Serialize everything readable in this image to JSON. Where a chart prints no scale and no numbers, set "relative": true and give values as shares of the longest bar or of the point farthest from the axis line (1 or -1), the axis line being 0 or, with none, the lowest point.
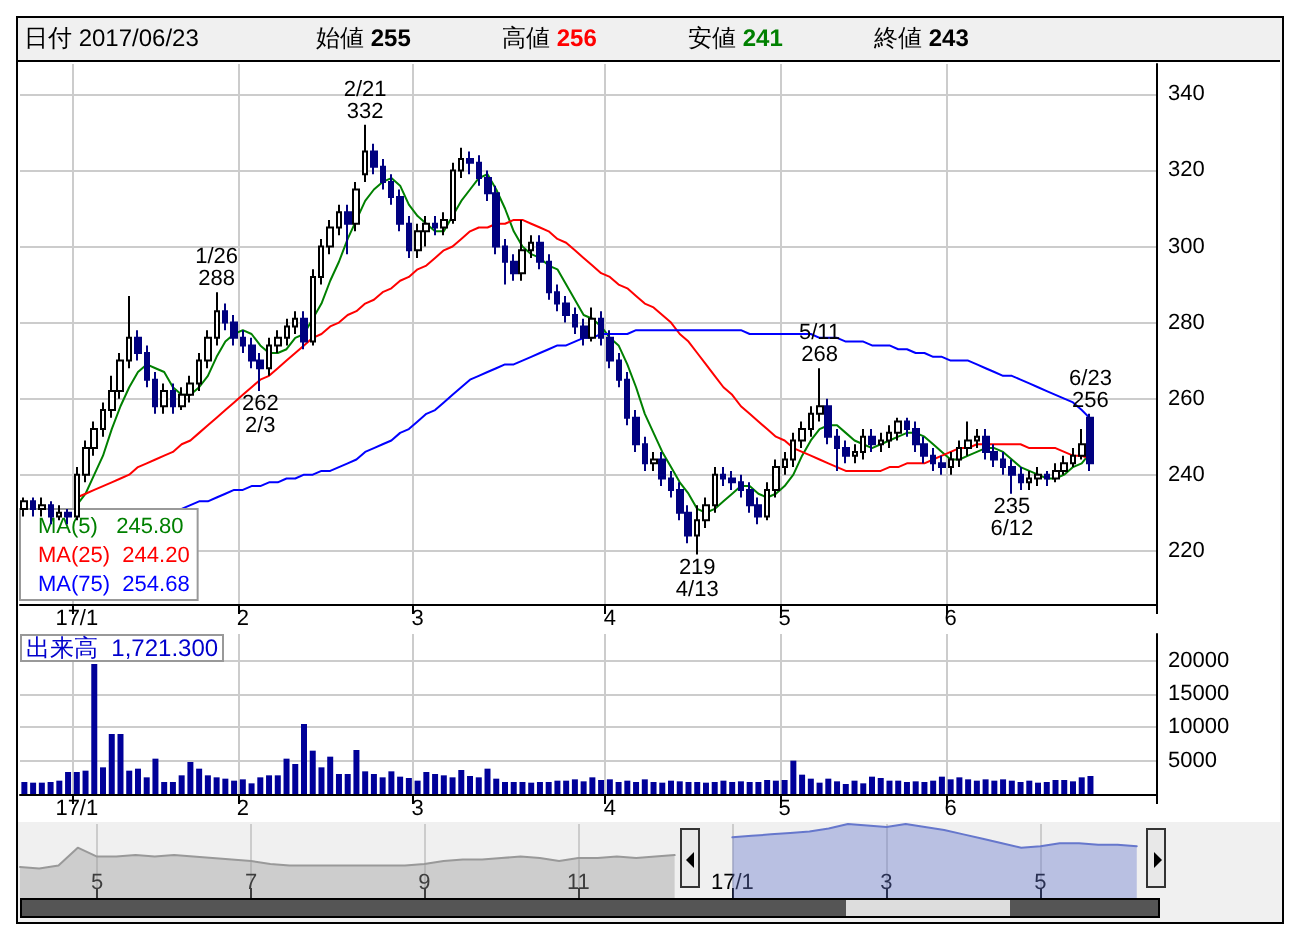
{
  "chart_data": [
    {
      "type": "candlestick",
      "title": "日付 2017/06/23",
      "annotations": [
        "始値 255",
        "高値 256",
        "安値 241",
        "終値 243",
        {
          "text": "1/26\n288",
          "y": 288
        },
        {
          "text": "262\n2/3",
          "y": 262
        },
        {
          "text": "2/21\n332",
          "y": 332
        },
        {
          "text": "219\n4/13",
          "y": 219
        },
        {
          "text": "5/11\n268",
          "y": 268
        },
        {
          "text": "235\n6/12",
          "y": 235
        },
        {
          "text": "6/23\n256",
          "y": 256
        }
      ],
      "categories": [
        null,
        null,
        null,
        null,
        null,
        null,
        "17/1",
        null,
        null,
        null,
        null,
        null,
        null,
        null,
        null,
        null,
        null,
        null,
        null,
        null,
        null,
        null,
        null,
        null,
        null,
        "2",
        null,
        null,
        null,
        null,
        null,
        null,
        null,
        null,
        null,
        null,
        null,
        null,
        null,
        null,
        null,
        null,
        null,
        null,
        null,
        "3",
        null,
        null,
        null,
        null,
        null,
        null,
        null,
        null,
        null,
        null,
        null,
        null,
        null,
        null,
        null,
        null,
        null,
        null,
        null,
        null,
        null,
        "4",
        null,
        null,
        null,
        null,
        null,
        null,
        null,
        null,
        null,
        null,
        null,
        null,
        null,
        null,
        null,
        null,
        null,
        null,
        null,
        "5",
        null,
        null,
        null,
        null,
        null,
        null,
        null,
        null,
        null,
        null,
        null,
        null,
        null,
        null,
        null,
        null,
        null,
        null,
        "6",
        null,
        null,
        null,
        null,
        null,
        null,
        null,
        null,
        null,
        null,
        null,
        null,
        null,
        null,
        null,
        null
      ],
      "ohlc": [
        [
          231,
          234,
          229,
          233
        ],
        [
          233,
          234,
          229,
          231
        ],
        [
          231,
          234,
          229,
          232
        ],
        [
          232,
          233,
          227,
          229
        ],
        [
          229,
          232,
          228,
          230
        ],
        [
          230,
          231,
          227,
          229
        ],
        [
          229,
          242,
          228,
          240
        ],
        [
          240,
          249,
          238,
          247
        ],
        [
          247,
          254,
          245,
          252
        ],
        [
          252,
          259,
          250,
          257
        ],
        [
          257,
          266,
          255,
          262
        ],
        [
          262,
          272,
          260,
          270
        ],
        [
          270,
          287,
          268,
          276
        ],
        [
          276,
          278,
          270,
          272
        ],
        [
          272,
          274,
          263,
          265
        ],
        [
          265,
          267,
          256,
          258
        ],
        [
          258,
          264,
          256,
          262
        ],
        [
          262,
          264,
          256,
          258
        ],
        [
          258,
          263,
          257,
          261
        ],
        [
          261,
          266,
          259,
          264
        ],
        [
          264,
          272,
          262,
          270
        ],
        [
          270,
          278,
          268,
          276
        ],
        [
          276,
          288,
          274,
          283
        ],
        [
          283,
          285,
          278,
          280
        ],
        [
          280,
          282,
          274,
          276
        ],
        [
          276,
          278,
          272,
          274
        ],
        [
          274,
          276,
          268,
          270
        ],
        [
          270,
          272,
          262,
          268
        ],
        [
          268,
          276,
          266,
          274
        ],
        [
          274,
          278,
          272,
          276
        ],
        [
          276,
          281,
          274,
          279
        ],
        [
          279,
          283,
          277,
          281
        ],
        [
          281,
          283,
          273,
          275
        ],
        [
          275,
          294,
          274,
          292
        ],
        [
          292,
          302,
          290,
          300
        ],
        [
          300,
          307,
          298,
          305
        ],
        [
          305,
          311,
          303,
          309
        ],
        [
          309,
          311,
          298,
          306
        ],
        [
          306,
          317,
          304,
          315
        ],
        [
          319,
          332,
          317,
          325
        ],
        [
          325,
          327,
          319,
          321
        ],
        [
          321,
          323,
          315,
          317
        ],
        [
          317,
          319,
          311,
          313
        ],
        [
          313,
          315,
          304,
          306
        ],
        [
          306,
          308,
          297,
          299
        ],
        [
          299,
          306,
          297,
          304
        ],
        [
          304,
          308,
          300,
          306
        ],
        [
          306,
          308,
          303,
          305
        ],
        [
          305,
          309,
          303,
          307
        ],
        [
          307,
          322,
          306,
          320
        ],
        [
          320,
          326,
          318,
          323
        ],
        [
          323,
          325,
          319,
          322
        ],
        [
          322,
          324,
          316,
          318
        ],
        [
          318,
          320,
          312,
          314
        ],
        [
          314,
          316,
          298,
          300
        ],
        [
          300,
          302,
          290,
          296
        ],
        [
          296,
          298,
          291,
          293
        ],
        [
          293,
          307,
          291,
          299
        ],
        [
          299,
          303,
          297,
          301
        ],
        [
          301,
          303,
          294,
          296
        ],
        [
          296,
          298,
          286,
          288
        ],
        [
          288,
          290,
          283,
          285
        ],
        [
          285,
          287,
          280,
          282
        ],
        [
          282,
          284,
          277,
          279
        ],
        [
          279,
          281,
          274,
          276
        ],
        [
          276,
          284,
          275,
          281
        ],
        [
          281,
          283,
          274,
          276
        ],
        [
          276,
          278,
          268,
          270
        ],
        [
          270,
          272,
          263,
          265
        ],
        [
          265,
          267,
          253,
          255
        ],
        [
          255,
          257,
          246,
          248
        ],
        [
          248,
          250,
          241,
          243
        ],
        [
          243,
          246,
          241,
          244
        ],
        [
          244,
          246,
          237,
          239
        ],
        [
          239,
          241,
          234,
          236
        ],
        [
          236,
          238,
          228,
          230
        ],
        [
          230,
          232,
          222,
          224
        ],
        [
          224,
          232,
          219,
          228
        ],
        [
          228,
          234,
          226,
          232
        ],
        [
          232,
          242,
          230,
          240
        ],
        [
          240,
          242,
          237,
          239
        ],
        [
          239,
          241,
          236,
          238
        ],
        [
          238,
          240,
          234,
          236
        ],
        [
          236,
          238,
          230,
          232
        ],
        [
          232,
          234,
          227,
          229
        ],
        [
          229,
          238,
          228,
          236
        ],
        [
          236,
          244,
          234,
          242
        ],
        [
          242,
          246,
          240,
          244
        ],
        [
          244,
          251,
          242,
          249
        ],
        [
          249,
          254,
          247,
          252
        ],
        [
          252,
          258,
          250,
          256
        ],
        [
          256,
          268,
          254,
          258
        ],
        [
          258,
          260,
          248,
          250
        ],
        [
          250,
          252,
          241,
          247
        ],
        [
          247,
          249,
          243,
          245
        ],
        [
          245,
          248,
          243,
          246
        ],
        [
          246,
          252,
          244,
          250
        ],
        [
          250,
          252,
          246,
          248
        ],
        [
          248,
          251,
          246,
          249
        ],
        [
          249,
          253,
          247,
          251
        ],
        [
          251,
          255,
          249,
          254
        ],
        [
          254,
          255,
          250,
          252
        ],
        [
          252,
          254,
          246,
          248
        ],
        [
          248,
          250,
          243,
          245
        ],
        [
          245,
          247,
          241,
          243
        ],
        [
          243,
          245,
          240,
          242
        ],
        [
          242,
          246,
          240,
          244
        ],
        [
          244,
          249,
          242,
          247
        ],
        [
          247,
          254,
          245,
          249
        ],
        [
          249,
          252,
          247,
          250
        ],
        [
          250,
          252,
          244,
          246
        ],
        [
          246,
          248,
          242,
          244
        ],
        [
          244,
          246,
          240,
          242
        ],
        [
          242,
          244,
          235,
          240
        ],
        [
          240,
          242,
          236,
          238
        ],
        [
          238,
          241,
          236,
          239
        ],
        [
          239,
          242,
          237,
          240
        ],
        [
          240,
          241,
          237,
          239
        ],
        [
          239,
          243,
          238,
          241
        ],
        [
          241,
          245,
          240,
          243
        ],
        [
          243,
          247,
          242,
          245
        ],
        [
          245,
          252,
          244,
          248
        ],
        [
          255,
          256,
          241,
          243
        ]
      ],
      "series": [
        {
          "type": "line",
          "name": "MA(5)   245.80",
          "color": "#008000",
          "values": [
            null,
            null,
            null,
            null,
            null,
            null,
            232,
            235,
            240,
            245,
            252,
            258,
            263,
            267,
            269,
            268,
            267,
            263,
            261,
            261,
            263,
            266,
            271,
            275,
            277,
            278,
            277,
            274,
            272,
            272,
            273,
            276,
            277,
            281,
            285,
            291,
            296,
            302,
            307,
            312,
            315,
            317,
            318,
            316,
            311,
            308,
            306,
            304,
            304,
            308,
            312,
            315,
            318,
            319,
            315,
            310,
            304,
            300,
            298,
            297,
            295,
            294,
            290,
            286,
            282,
            281,
            279,
            276,
            274,
            269,
            263,
            256,
            251,
            246,
            242,
            238,
            235,
            231,
            230,
            231,
            233,
            235,
            237,
            237,
            235,
            234,
            235,
            237,
            240,
            245,
            249,
            252,
            253,
            253,
            251,
            249,
            248,
            247,
            248,
            249,
            250,
            251,
            251,
            250,
            248,
            246,
            244,
            244,
            245,
            246,
            247,
            247,
            246,
            244,
            242,
            241,
            240,
            239,
            239,
            240,
            242,
            243,
            245.8
          ]
        },
        {
          "type": "line",
          "name": "MA(25)  244.20",
          "color": "#ff0000",
          "values": [
            null,
            null,
            null,
            null,
            null,
            null,
            234,
            235,
            236,
            237,
            238,
            239,
            240,
            242,
            243,
            244,
            245,
            246,
            248,
            249,
            251,
            253,
            255,
            257,
            259,
            261,
            263,
            265,
            266,
            268,
            270,
            272,
            274,
            276,
            277,
            279,
            280,
            282,
            283,
            285,
            286,
            288,
            289,
            291,
            292,
            294,
            295,
            297,
            299,
            300,
            302,
            304,
            305,
            305,
            306,
            306,
            307,
            307,
            306,
            305,
            304,
            302,
            301,
            299,
            297,
            295,
            293,
            292,
            290,
            289,
            287,
            285,
            284,
            282,
            280,
            277,
            275,
            272,
            269,
            266,
            263,
            261,
            258,
            256,
            254,
            252,
            250,
            249,
            247,
            246,
            245,
            244,
            243,
            242,
            241,
            241,
            241,
            241,
            241,
            242,
            242,
            243,
            243,
            243,
            244,
            245,
            246,
            247,
            247,
            248,
            248,
            248,
            248,
            248,
            248,
            247,
            247,
            247,
            247,
            246,
            245,
            245,
            244.2
          ]
        },
        {
          "type": "line",
          "name": "MA(75)  254.68",
          "color": "#0000ff",
          "values": [
            null,
            null,
            null,
            null,
            null,
            null,
            null,
            null,
            null,
            null,
            null,
            null,
            null,
            null,
            null,
            null,
            null,
            null,
            231,
            232,
            233,
            233,
            234,
            235,
            236,
            236,
            237,
            237,
            238,
            238,
            239,
            239,
            240,
            240,
            241,
            241,
            242,
            243,
            244,
            246,
            247,
            248,
            249,
            251,
            252,
            254,
            256,
            257,
            259,
            261,
            263,
            265,
            266,
            267,
            268,
            269,
            269,
            270,
            271,
            272,
            273,
            274,
            274,
            275,
            276,
            276,
            277,
            277,
            277,
            277,
            278,
            278,
            278,
            278,
            278,
            278,
            278,
            278,
            278,
            278,
            278,
            278,
            278,
            277,
            277,
            277,
            277,
            277,
            277,
            277,
            277,
            276,
            276,
            276,
            275,
            275,
            275,
            274,
            274,
            274,
            273,
            273,
            272,
            272,
            271,
            271,
            270,
            270,
            270,
            269,
            268,
            267,
            266,
            266,
            265,
            264,
            263,
            262,
            261,
            260,
            259,
            257,
            254.68
          ]
        }
      ],
      "ylim": [
        206,
        348
      ],
      "yticks": [
        220,
        240,
        260,
        280,
        300,
        320,
        340
      ],
      "grid": true,
      "legend": "bottom left"
    },
    {
      "type": "bar",
      "title": "出来高  1,721.300",
      "categories": [
        null,
        null,
        null,
        null,
        null,
        null,
        "17/1",
        null,
        null,
        null,
        null,
        null,
        null,
        null,
        null,
        null,
        null,
        null,
        null,
        null,
        null,
        null,
        null,
        null,
        null,
        "2",
        null,
        null,
        null,
        null,
        null,
        null,
        null,
        null,
        null,
        null,
        null,
        null,
        null,
        null,
        null,
        null,
        null,
        null,
        null,
        "3",
        null,
        null,
        null,
        null,
        null,
        null,
        null,
        null,
        null,
        null,
        null,
        null,
        null,
        null,
        null,
        null,
        null,
        null,
        null,
        null,
        null,
        "4",
        null,
        null,
        null,
        null,
        null,
        null,
        null,
        null,
        null,
        null,
        null,
        null,
        null,
        null,
        null,
        null,
        null,
        null,
        null,
        "5",
        null,
        null,
        null,
        null,
        null,
        null,
        null,
        null,
        null,
        null,
        null,
        null,
        null,
        null,
        null,
        null,
        null,
        null,
        "6",
        null,
        null,
        null,
        null,
        null,
        null,
        null,
        null,
        null,
        null,
        null,
        null,
        null,
        null,
        null,
        null
      ],
      "values": [
        1800,
        1700,
        1700,
        1800,
        2000,
        3300,
        3300,
        3500,
        19500,
        4000,
        9000,
        9000,
        3500,
        3800,
        2500,
        5300,
        1800,
        1800,
        2800,
        4800,
        3800,
        2800,
        2500,
        2300,
        2000,
        2200,
        1600,
        2500,
        2800,
        2800,
        5300,
        4500,
        10500,
        6500,
        4000,
        5600,
        3000,
        3000,
        6600,
        3400,
        3000,
        2500,
        3400,
        2600,
        2400,
        2000,
        3300,
        3000,
        2800,
        2500,
        3600,
        2700,
        2500,
        3800,
        2300,
        1800,
        1800,
        1800,
        1700,
        1800,
        1800,
        2000,
        2000,
        2200,
        1900,
        2500,
        2100,
        2200,
        1800,
        2000,
        1800,
        2200,
        1800,
        1700,
        2000,
        1900,
        1800,
        1800,
        1700,
        1800,
        2000,
        1800,
        1900,
        1800,
        1800,
        2100,
        2000,
        2100,
        5000,
        2900,
        2300,
        1700,
        2300,
        1900,
        1500,
        2000,
        1600,
        2600,
        2400,
        2000,
        2000,
        1800,
        1900,
        1800,
        2000,
        2600,
        2200,
        2500,
        2200,
        2000,
        2200,
        2000,
        2200,
        2000,
        1800,
        2000,
        1700,
        1800,
        2100,
        2100,
        1900,
        2500,
        2700
      ],
      "color": "#000099",
      "ylim": [
        0,
        24000
      ],
      "yticks": [
        5000,
        10000,
        15000,
        20000
      ],
      "grid": true
    },
    {
      "type": "area",
      "relative": true,
      "tick_labels": "x",
      "grid": "x",
      "categories": [
        null,
        null,
        null,
        null,
        "5",
        null,
        null,
        null,
        null,
        null,
        null,
        null,
        "7",
        null,
        null,
        null,
        null,
        null,
        null,
        null,
        null,
        "9",
        null,
        null,
        null,
        null,
        null,
        null,
        null,
        "11",
        null,
        null,
        null,
        null,
        null,
        null,
        null,
        "17/1",
        null,
        null,
        null,
        null,
        null,
        null,
        null,
        "3",
        null,
        null,
        null,
        null,
        null,
        null,
        null,
        "5",
        null,
        null,
        null,
        null,
        null,
        null
      ],
      "series": [
        {
          "color": "#999999",
          "values": [
            0.42,
            0.4,
            0.44,
            0.68,
            0.56,
            0.56,
            0.58,
            0.56,
            0.58,
            0.56,
            0.54,
            0.52,
            0.5,
            0.46,
            0.44,
            0.44,
            0.44,
            0.44,
            0.44,
            0.44,
            0.44,
            0.46,
            0.5,
            0.52,
            0.52,
            0.54,
            0.56,
            0.54,
            0.5,
            0.54,
            0.54,
            0.56,
            0.54,
            0.56,
            0.58,
            null,
            null,
            null,
            null,
            null,
            null,
            null,
            null,
            null,
            null,
            null,
            null,
            null,
            null,
            null,
            null,
            null,
            null,
            null,
            null,
            null,
            null,
            null,
            null,
            null
          ]
        },
        {
          "color": "#6677cc",
          "values": [
            null,
            null,
            null,
            null,
            null,
            null,
            null,
            null,
            null,
            null,
            null,
            null,
            null,
            null,
            null,
            null,
            null,
            null,
            null,
            null,
            null,
            null,
            null,
            null,
            null,
            null,
            null,
            null,
            null,
            null,
            null,
            null,
            null,
            null,
            null,
            null,
            null,
            0.82,
            0.84,
            0.86,
            0.88,
            0.9,
            0.94,
            1,
            0.98,
            0.96,
            1,
            0.96,
            0.92,
            0.86,
            0.8,
            0.74,
            0.68,
            0.7,
            0.74,
            0.74,
            0.72,
            0.72,
            0.7,
            null
          ]
        }
      ]
    }
  ]
}
